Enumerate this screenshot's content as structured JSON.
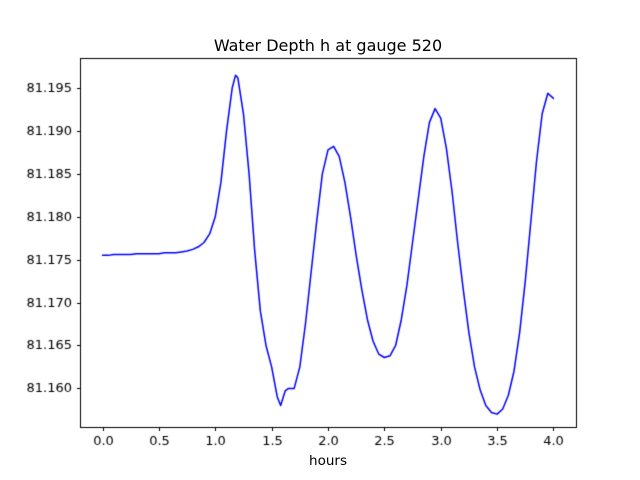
{
  "figure": {
    "background": "#ffffff",
    "axes_edge_color": "#000000",
    "tick_color": "#000000"
  },
  "chart_data": {
    "type": "line",
    "title": "Water Depth h at gauge 520",
    "xlabel": "hours",
    "ylabel": "",
    "grid": false,
    "legend": false,
    "line_color": "#0000ff",
    "line_width": 1.5,
    "xlim": [
      -0.2,
      4.2
    ],
    "ylim": [
      81.1555,
      81.1985
    ],
    "xticks": [
      0.0,
      0.5,
      1.0,
      1.5,
      2.0,
      2.5,
      3.0,
      3.5,
      4.0
    ],
    "xtick_labels": [
      "0.0",
      "0.5",
      "1.0",
      "1.5",
      "2.0",
      "2.5",
      "3.0",
      "3.5",
      "4.0"
    ],
    "yticks": [
      81.16,
      81.165,
      81.17,
      81.175,
      81.18,
      81.185,
      81.19,
      81.195
    ],
    "ytick_labels": [
      "81.160",
      "81.165",
      "81.170",
      "81.175",
      "81.180",
      "81.185",
      "81.190",
      "81.195"
    ],
    "x": [
      0.0,
      0.05,
      0.1,
      0.15,
      0.2,
      0.25,
      0.3,
      0.35,
      0.4,
      0.45,
      0.5,
      0.55,
      0.6,
      0.65,
      0.7,
      0.75,
      0.8,
      0.85,
      0.9,
      0.95,
      1.0,
      1.05,
      1.1,
      1.15,
      1.18,
      1.2,
      1.25,
      1.3,
      1.35,
      1.4,
      1.45,
      1.5,
      1.55,
      1.58,
      1.62,
      1.65,
      1.7,
      1.75,
      1.8,
      1.85,
      1.9,
      1.95,
      2.0,
      2.05,
      2.1,
      2.15,
      2.2,
      2.25,
      2.3,
      2.35,
      2.4,
      2.45,
      2.5,
      2.55,
      2.6,
      2.65,
      2.7,
      2.75,
      2.8,
      2.85,
      2.9,
      2.95,
      3.0,
      3.05,
      3.1,
      3.15,
      3.2,
      3.25,
      3.3,
      3.35,
      3.4,
      3.45,
      3.5,
      3.55,
      3.6,
      3.65,
      3.7,
      3.75,
      3.8,
      3.85,
      3.9,
      3.95,
      4.0
    ],
    "y": [
      81.1755,
      81.1755,
      81.1756,
      81.1756,
      81.1756,
      81.1756,
      81.1757,
      81.1757,
      81.1757,
      81.1757,
      81.1757,
      81.1758,
      81.1758,
      81.1758,
      81.1759,
      81.176,
      81.1762,
      81.1765,
      81.177,
      81.178,
      81.18,
      81.184,
      81.19,
      81.195,
      81.1965,
      81.1962,
      81.192,
      81.185,
      81.176,
      81.169,
      81.165,
      81.1625,
      81.159,
      81.158,
      81.1597,
      81.16,
      81.16,
      81.1625,
      81.1675,
      81.1735,
      81.1795,
      81.185,
      81.1878,
      81.1882,
      81.187,
      81.184,
      81.18,
      81.1755,
      81.1715,
      81.168,
      81.1655,
      81.164,
      81.1636,
      81.1638,
      81.165,
      81.168,
      81.172,
      81.177,
      81.182,
      81.187,
      81.191,
      81.1926,
      81.1915,
      81.188,
      81.183,
      81.177,
      81.1715,
      81.1665,
      81.1625,
      81.1598,
      81.158,
      81.1572,
      81.157,
      81.1576,
      81.1592,
      81.162,
      81.1665,
      81.1725,
      81.1795,
      81.1865,
      81.192,
      81.1944,
      81.1938
    ]
  }
}
